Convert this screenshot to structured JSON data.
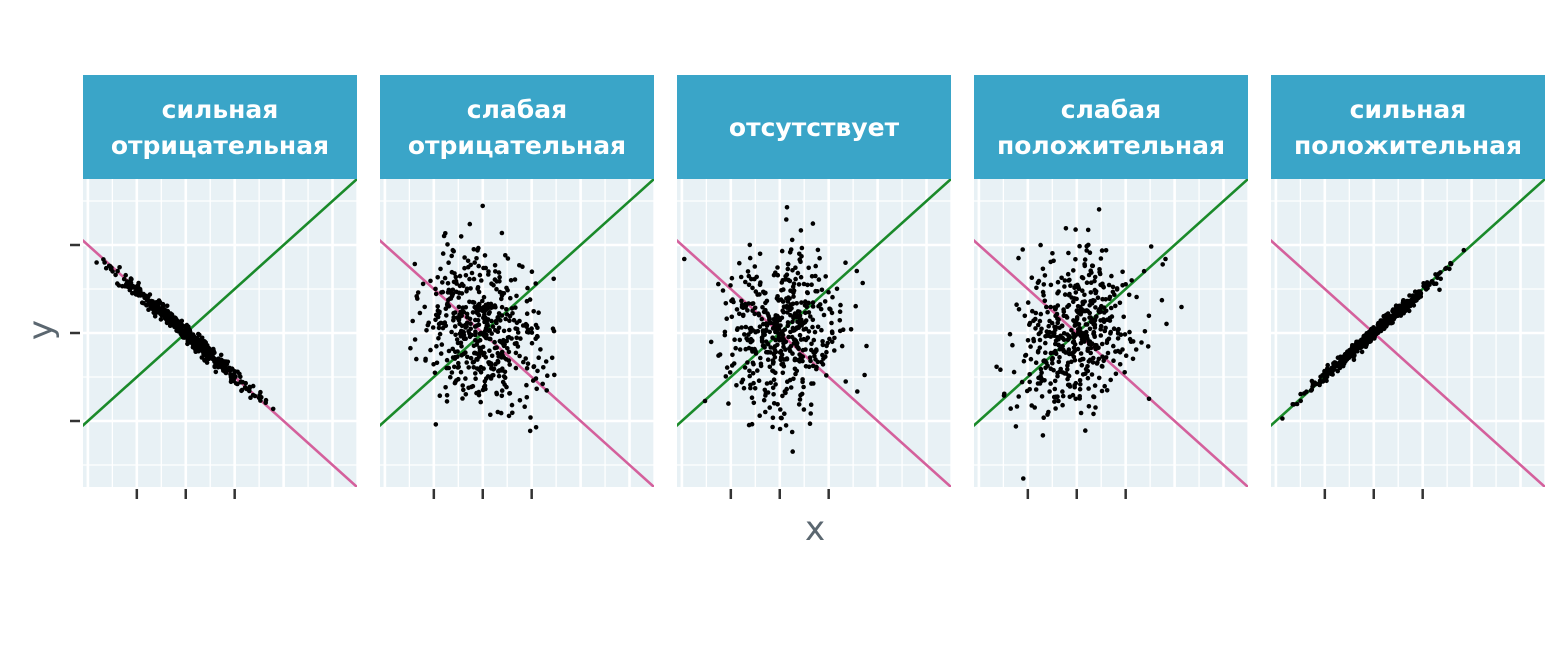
{
  "chart_data": {
    "type": "scatter",
    "xlabel": "x",
    "ylabel": "y",
    "xlim": [
      -2.1,
      3.5
    ],
    "ylim": [
      -3.5,
      3.5
    ],
    "x_ticks": [
      -1,
      0,
      1
    ],
    "y_ticks": [
      -2,
      0,
      2
    ],
    "grid": true,
    "reference_lines": [
      {
        "slope": 1,
        "intercept": 0,
        "color": "#1a8a2a"
      },
      {
        "slope": -1,
        "intercept": 0,
        "color": "#d4609c"
      }
    ],
    "colors": {
      "panel_background": "#e8f1f5",
      "grid": "#ffffff",
      "strip_background": "#3aa5c8",
      "strip_text": "#ffffff",
      "points": "#000000",
      "axis_text": "#5b6770",
      "tick": "#333333"
    },
    "panels": [
      {
        "strip": [
          "сильная",
          "отрицательная"
        ],
        "slope": -0.98,
        "noise": 0.18,
        "n": 500
      },
      {
        "strip": [
          "слабая",
          "отрицательная"
        ],
        "slope": -0.35,
        "noise": 0.95,
        "n": 500
      },
      {
        "strip": [
          "отсутствует"
        ],
        "slope": 0.0,
        "noise": 1.0,
        "n": 500
      },
      {
        "strip": [
          "слабая",
          "положительная"
        ],
        "slope": 0.45,
        "noise": 0.95,
        "n": 500
      },
      {
        "strip": [
          "сильная",
          "положительная"
        ],
        "slope": 0.98,
        "noise": 0.15,
        "n": 500
      }
    ]
  }
}
